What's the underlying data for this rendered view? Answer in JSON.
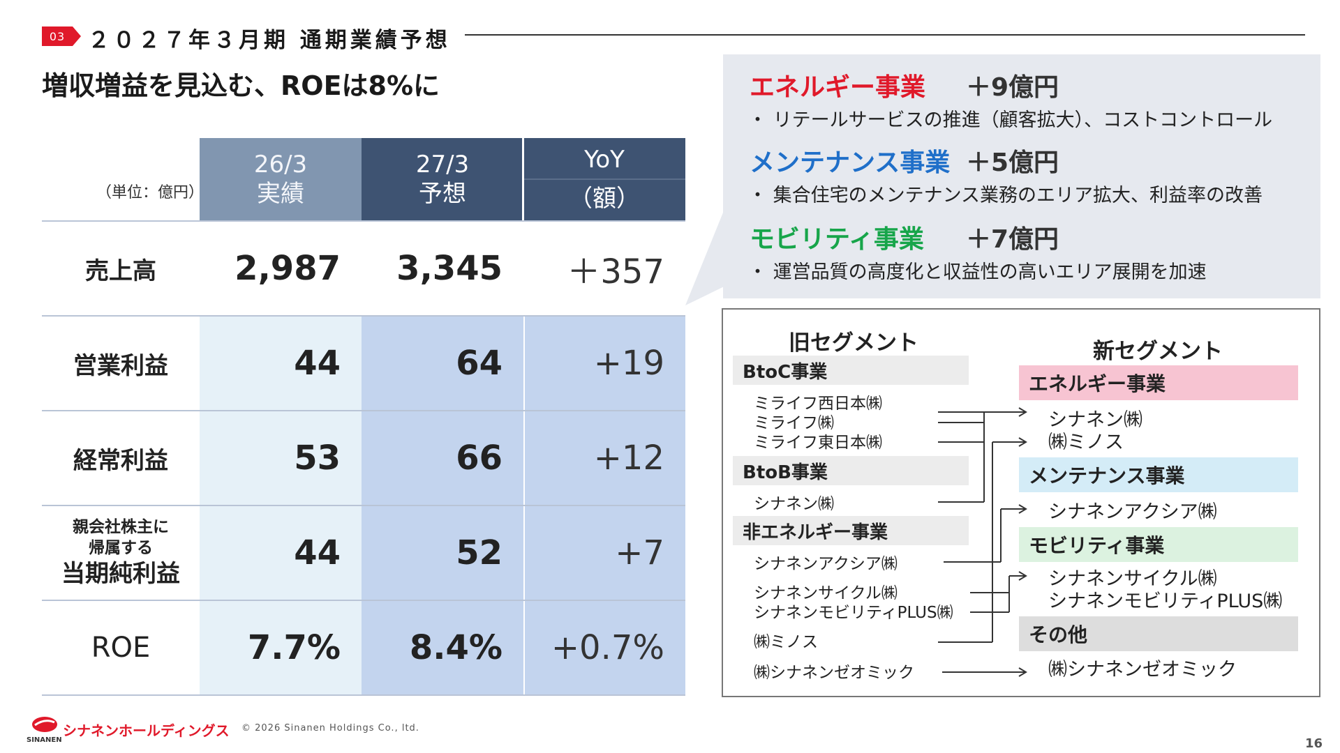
{
  "header": {
    "section_badge": "03",
    "section_title": "２０２７年３月期 通期業績予想",
    "headline": "増収増益を見込む、ROEは8%に"
  },
  "table": {
    "unit": "（単位：億円）",
    "columns": [
      {
        "line1": "26/3",
        "line2": "実績"
      },
      {
        "line1": "27/3",
        "line2": "予想"
      },
      {
        "line1": "YoY",
        "line2": "（額）"
      }
    ],
    "rows": [
      {
        "label": "売上高",
        "prev": "2,987",
        "fcst": "3,345",
        "yoy": "＋357"
      },
      {
        "label": "営業利益",
        "prev": "44",
        "fcst": "64",
        "yoy": "+19"
      },
      {
        "label": "経常利益",
        "prev": "53",
        "fcst": "66",
        "yoy": "+12"
      },
      {
        "label_small1": "親会社株主に",
        "label_small2": "帰属する",
        "label": "当期純利益",
        "prev": "44",
        "fcst": "52",
        "yoy": "+7"
      },
      {
        "label": "ROE",
        "prev": "7.7%",
        "fcst": "8.4%",
        "yoy": "+0.7%"
      }
    ]
  },
  "callout": {
    "items": [
      {
        "title": "エネルギー事業",
        "amount": "＋9億円",
        "desc": "・ リテールサービスの推進（顧客拡大）、コストコントロール",
        "color": "#e0192a"
      },
      {
        "title": "メンテナンス事業",
        "amount": "＋5億円",
        "desc": "・ 集合住宅のメンテナンス業務のエリア拡大、利益率の改善",
        "color": "#1f6fc9"
      },
      {
        "title": "モビリティ事業",
        "amount": "＋7億円",
        "desc": "・ 運営品質の高度化と収益性の高いエリア展開を加速",
        "color": "#17a54a"
      }
    ]
  },
  "segments": {
    "old_title": "旧セグメント",
    "new_title": "新セグメント",
    "old_groups": [
      {
        "head": "BtoC事業",
        "items": [
          "ミライフ西日本㈱",
          "ミライフ㈱",
          "ミライフ東日本㈱"
        ]
      },
      {
        "head": "BtoB事業",
        "items": [
          "シナネン㈱"
        ]
      },
      {
        "head": "非エネルギー事業",
        "items": [
          "シナネンアクシア㈱",
          "シナネンサイクル㈱",
          "シナネンモビリティPLUS㈱",
          "㈱ミノス",
          "㈱シナネンゼオミック"
        ]
      }
    ],
    "new_groups": [
      {
        "head": "エネルギー事業",
        "color": "#f7c4d2",
        "items": [
          "シナネン㈱",
          "㈱ミノス"
        ]
      },
      {
        "head": "メンテナンス事業",
        "color": "#d4ecf7",
        "items": [
          "シナネンアクシア㈱"
        ]
      },
      {
        "head": "モビリティ事業",
        "color": "#dcf2e0",
        "items": [
          "シナネンサイクル㈱",
          "シナネンモビリティPLUS㈱"
        ]
      },
      {
        "head": "その他",
        "color": "#dddddd",
        "items": [
          "㈱シナネンゼオミック"
        ]
      }
    ]
  },
  "footer": {
    "logo_text": "シナネンホールディングス",
    "logo_sub": "SINANEN",
    "copyright": "© 2026 Sinanen Holdings Co., ltd.",
    "page": "16"
  }
}
